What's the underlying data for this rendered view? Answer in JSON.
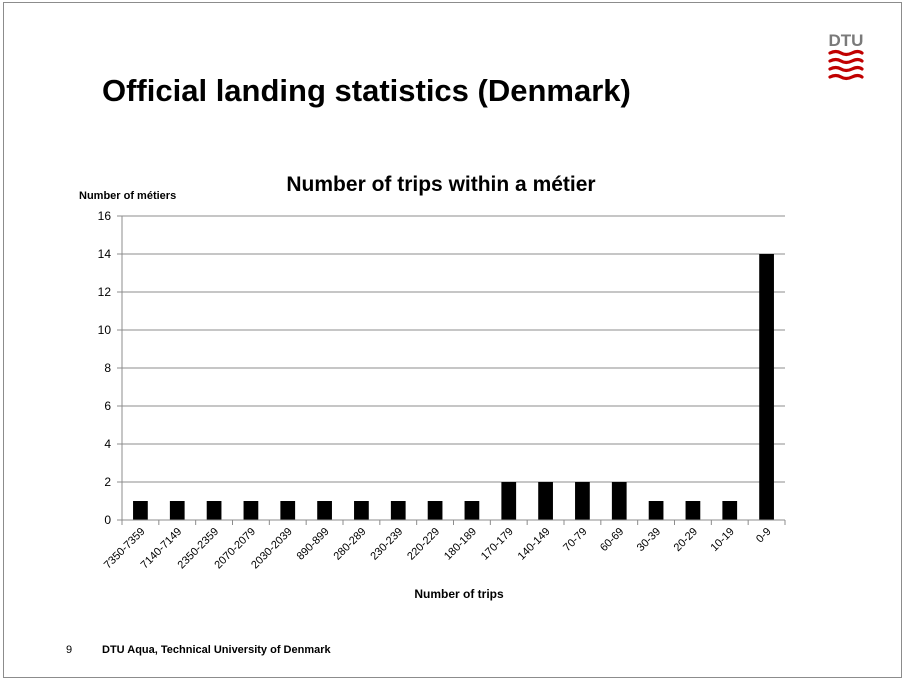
{
  "slide": {
    "title": "Official landing statistics (Denmark)",
    "logo_text": "DTU",
    "page_number": "9",
    "footer_text": "DTU Aqua, Technical University of Denmark",
    "brand_color": "#c00000"
  },
  "chart_data": {
    "type": "bar",
    "title": "Number of trips within a métier",
    "xlabel": "Number of trips",
    "ylabel": "Number of métiers",
    "categories": [
      "7350-7359",
      "7140-7149",
      "2350-2359",
      "2070-2079",
      "2030-2039",
      "890-899",
      "280-289",
      "230-239",
      "220-229",
      "180-189",
      "170-179",
      "140-149",
      "70-79",
      "60-69",
      "30-39",
      "20-29",
      "10-19",
      "0-9"
    ],
    "values": [
      1,
      1,
      1,
      1,
      1,
      1,
      1,
      1,
      1,
      1,
      2,
      2,
      2,
      2,
      1,
      1,
      1,
      14
    ],
    "ylim": [
      0,
      16
    ],
    "yticks": [
      0,
      2,
      4,
      6,
      8,
      10,
      12,
      14,
      16
    ],
    "grid": true,
    "legend": false,
    "bar_color": "#000000",
    "grid_color": "#8c8c8c"
  }
}
